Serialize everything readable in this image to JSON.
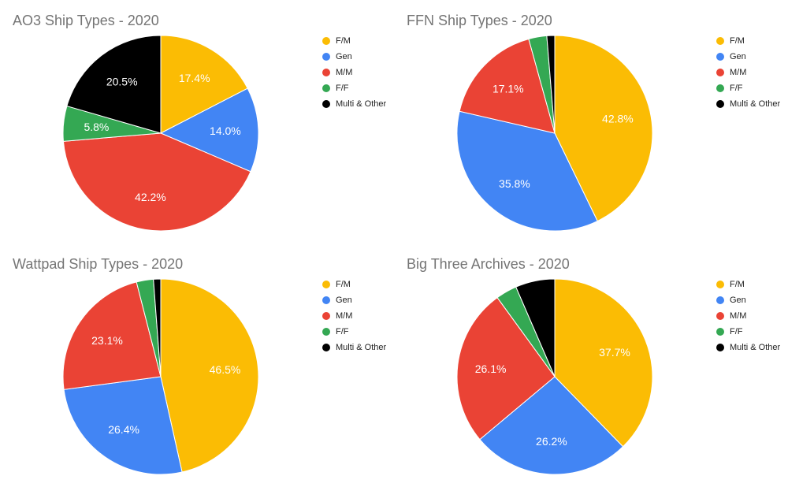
{
  "chart_data": [
    {
      "type": "pie",
      "title": "AO3 Ship Types - 2020",
      "categories": [
        "F/M",
        "Gen",
        "M/M",
        "F/F",
        "Multi & Other"
      ],
      "values": [
        17.4,
        14.0,
        42.2,
        5.8,
        20.5
      ],
      "data_labels": [
        "17.4%",
        "14.0%",
        "42.2%",
        "5.8%",
        "20.5%"
      ],
      "legend": "right"
    },
    {
      "type": "pie",
      "title": "FFN Ship Types - 2020",
      "categories": [
        "F/M",
        "Gen",
        "M/M",
        "F/F",
        "Multi & Other"
      ],
      "values": [
        42.8,
        35.8,
        17.1,
        3.0,
        1.3
      ],
      "data_labels": [
        "42.8%",
        "35.8%",
        "17.1%",
        "",
        ""
      ],
      "legend": "right"
    },
    {
      "type": "pie",
      "title": "Wattpad Ship Types - 2020",
      "categories": [
        "F/M",
        "Gen",
        "M/M",
        "F/F",
        "Multi & Other"
      ],
      "values": [
        46.5,
        26.4,
        23.1,
        2.8,
        1.2
      ],
      "data_labels": [
        "46.5%",
        "26.4%",
        "23.1%",
        "",
        ""
      ],
      "legend": "right"
    },
    {
      "type": "pie",
      "title": "Big Three Archives - 2020",
      "categories": [
        "F/M",
        "Gen",
        "M/M",
        "F/F",
        "Multi & Other"
      ],
      "values": [
        37.7,
        26.2,
        26.1,
        3.5,
        6.5
      ],
      "data_labels": [
        "37.7%",
        "26.2%",
        "26.1%",
        "",
        ""
      ],
      "legend": "right"
    }
  ],
  "colors": [
    "#fbbc04",
    "#4285f4",
    "#ea4335",
    "#34a853",
    "#000000"
  ],
  "label_colors": [
    "#ffffff",
    "#ffffff",
    "#ffffff",
    "#ffffff",
    "#ffffff"
  ]
}
